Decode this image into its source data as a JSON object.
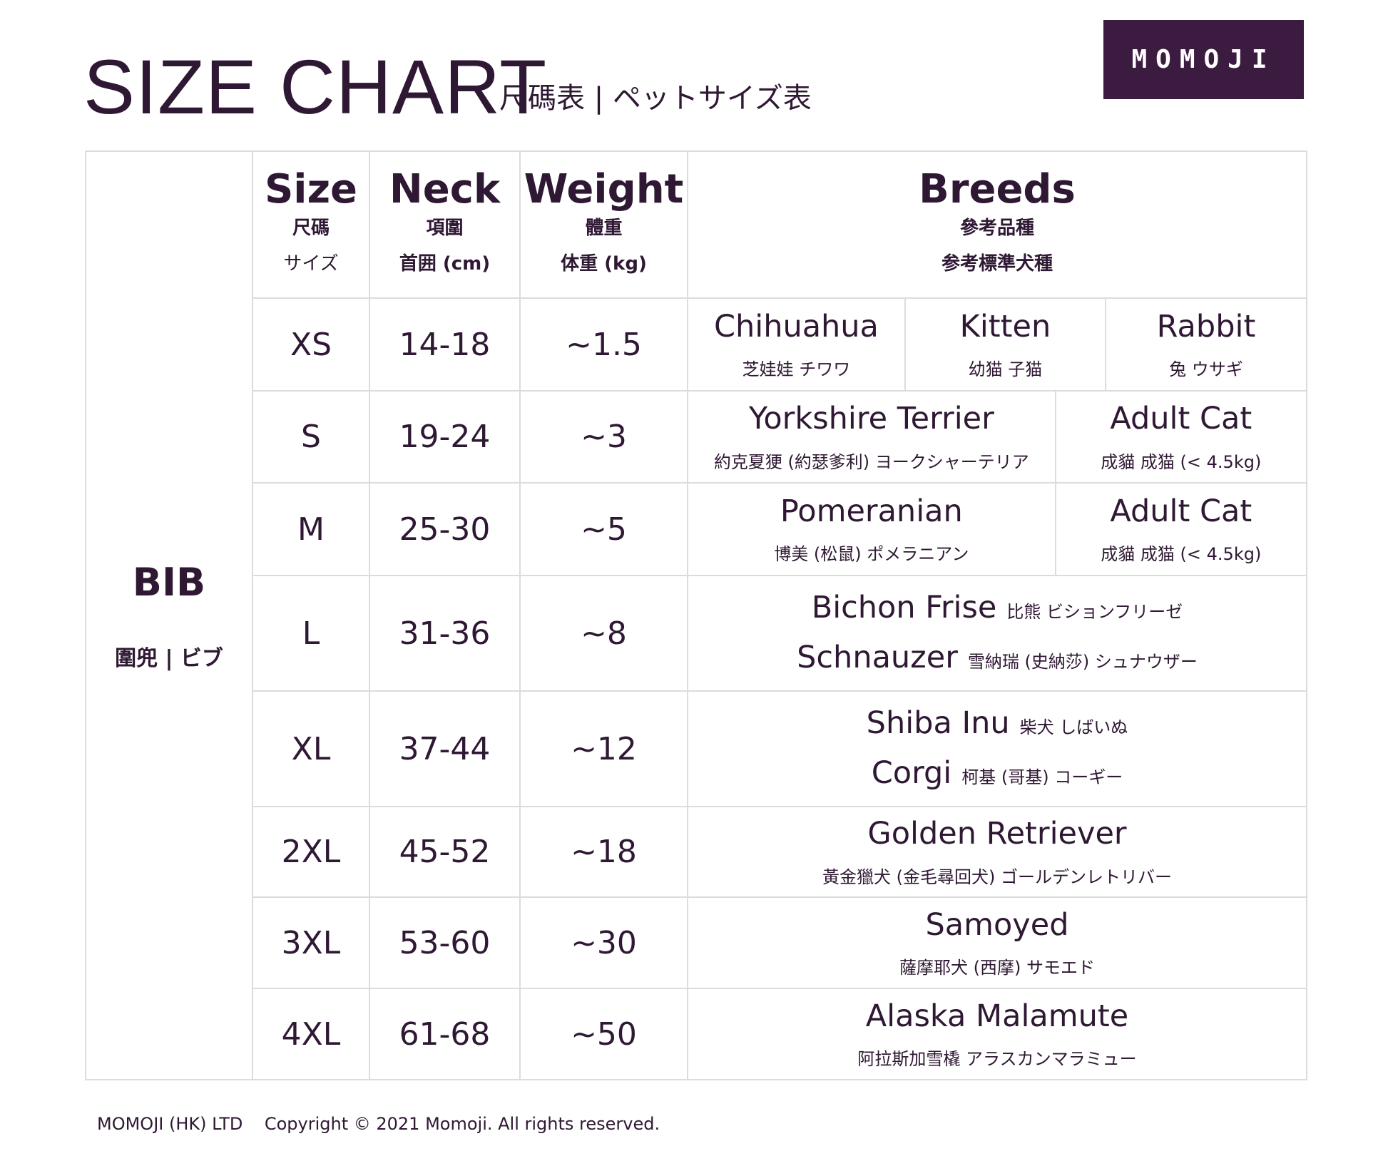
{
  "header": {
    "title": "SIZE CHART",
    "subtitle": "尺碼表 | ペットサイズ表",
    "logo": "MOMOJI"
  },
  "columns": {
    "size": {
      "label": "Size",
      "zh": "尺碼",
      "ja": "サイズ"
    },
    "neck": {
      "label": "Neck",
      "zh": "項圍",
      "ja": "首囲 (cm)"
    },
    "weight": {
      "label": "Weight",
      "zh": "體重",
      "ja": "体重 (kg)"
    },
    "breeds": {
      "label": "Breeds",
      "zh": "參考品種",
      "ja": "参考標準犬種"
    }
  },
  "product": {
    "name": "BIB",
    "sub": "圍兜 | ビブ"
  },
  "rows": [
    {
      "size": "XS",
      "neck": "14-18",
      "weight": "~1.5",
      "breeds": [
        {
          "name": "Chihuahua",
          "sub": "芝娃娃 チワワ"
        },
        {
          "name": "Kitten",
          "sub": "幼猫 子猫"
        },
        {
          "name": "Rabbit",
          "sub": "兔 ウサギ"
        }
      ]
    },
    {
      "size": "S",
      "neck": "19-24",
      "weight": "~3",
      "breeds": [
        {
          "name": "Yorkshire Terrier",
          "sub": "約克夏㹴 (約瑟爹利) ヨークシャーテリア"
        },
        {
          "name": "Adult Cat",
          "sub": "成貓 成猫 (< 4.5kg)"
        }
      ]
    },
    {
      "size": "M",
      "neck": "25-30",
      "weight": "~5",
      "breeds": [
        {
          "name": "Pomeranian",
          "sub": "博美 (松鼠) ポメラニアン"
        },
        {
          "name": "Adult Cat",
          "sub": "成貓 成猫 (< 4.5kg)"
        }
      ]
    },
    {
      "size": "L",
      "neck": "31-36",
      "weight": "~8",
      "breeds": [
        {
          "name": "Bichon Frise",
          "sub": "比熊 ビションフリーゼ"
        },
        {
          "name": "Schnauzer",
          "sub": "雪納瑞 (史納莎) シュナウザー"
        }
      ]
    },
    {
      "size": "XL",
      "neck": "37-44",
      "weight": "~12",
      "breeds": [
        {
          "name": "Shiba Inu",
          "sub": "柴犬 しばいぬ"
        },
        {
          "name": "Corgi",
          "sub": "柯基 (哥基) コーギー"
        }
      ]
    },
    {
      "size": "2XL",
      "neck": "45-52",
      "weight": "~18",
      "breeds": [
        {
          "name": "Golden Retriever",
          "sub": "黃金獵犬 (金毛尋回犬) ゴールデンレトリバー"
        }
      ]
    },
    {
      "size": "3XL",
      "neck": "53-60",
      "weight": "~30",
      "breeds": [
        {
          "name": "Samoyed",
          "sub": "薩摩耶犬 (西摩) サモエド"
        }
      ]
    },
    {
      "size": "4XL",
      "neck": "61-68",
      "weight": "~50",
      "breeds": [
        {
          "name": "Alaska Malamute",
          "sub": "阿拉斯加雪橇 アラスカンマラミュー"
        }
      ]
    }
  ],
  "footer": {
    "company": "MOMOJI (HK) LTD",
    "copyright": "Copyright © 2021 Momoji. All rights reserved."
  },
  "colors": {
    "text": "#2f1833",
    "logo_bg": "#3b1b3f",
    "border": "#dcdcdc"
  }
}
